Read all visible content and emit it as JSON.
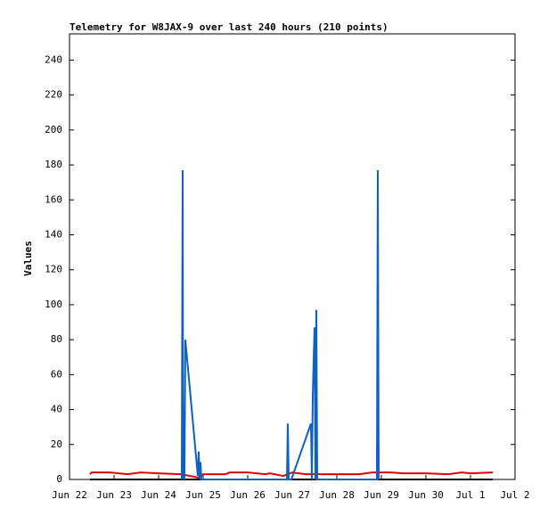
{
  "chart_data": {
    "type": "line",
    "title": "Telemetry for W8JAX-9 over last 240 hours (210 points)",
    "ylabel": "Values",
    "xlim": [
      22,
      32
    ],
    "xticks": [
      {
        "value": 22,
        "label": "Jun 22"
      },
      {
        "value": 23,
        "label": "Jun 23"
      },
      {
        "value": 24,
        "label": "Jun 24"
      },
      {
        "value": 25,
        "label": "Jun 25"
      },
      {
        "value": 26,
        "label": "Jun 26"
      },
      {
        "value": 27,
        "label": "Jun 27"
      },
      {
        "value": 28,
        "label": "Jun 28"
      },
      {
        "value": 29,
        "label": "Jun 29"
      },
      {
        "value": 30,
        "label": "Jun 30"
      },
      {
        "value": 31,
        "label": "Jul 1"
      },
      {
        "value": 32,
        "label": "Jul 2"
      }
    ],
    "ylim": [
      0,
      255
    ],
    "yticks": [
      0,
      20,
      40,
      60,
      80,
      100,
      120,
      140,
      160,
      180,
      200,
      220,
      240
    ],
    "series": [
      {
        "color": "#000000",
        "x": [
          22.46,
          31.5
        ],
        "values": [
          0,
          0
        ]
      },
      {
        "color": "#e00000",
        "x": [
          22.46,
          22.5,
          22.9,
          23.3,
          23.6,
          24.0,
          24.5,
          24.9,
          25.0,
          25.5,
          25.6,
          26.0,
          26.4,
          26.5,
          26.8,
          27.0,
          27.3,
          27.6,
          28.0,
          28.5,
          28.8,
          29.2,
          29.5,
          30.0,
          30.5,
          30.8,
          31.0,
          31.5
        ],
        "values": [
          3,
          4,
          4,
          3,
          4,
          3.5,
          3,
          1,
          3,
          3,
          4,
          4,
          3,
          3.5,
          2,
          4,
          3,
          3,
          3,
          3,
          4,
          4,
          3.5,
          3.5,
          3,
          4,
          3.5,
          4
        ]
      },
      {
        "color": "#1060c0",
        "x": [
          24.52,
          24.54,
          24.55,
          24.57,
          24.58,
          24.6,
          24.88,
          24.9,
          24.92,
          24.94,
          24.96,
          26.88,
          26.9,
          26.92,
          26.98,
          27.42,
          27.44,
          27.46,
          27.48,
          27.5,
          27.52,
          27.54,
          27.56,
          28.9,
          28.92,
          28.94
        ],
        "values": [
          0,
          177,
          0,
          40,
          0,
          80,
          2,
          16,
          0,
          10,
          0,
          0,
          32,
          0,
          0,
          32,
          0,
          48,
          68,
          87,
          0,
          97,
          0,
          0,
          177,
          0
        ]
      }
    ]
  }
}
